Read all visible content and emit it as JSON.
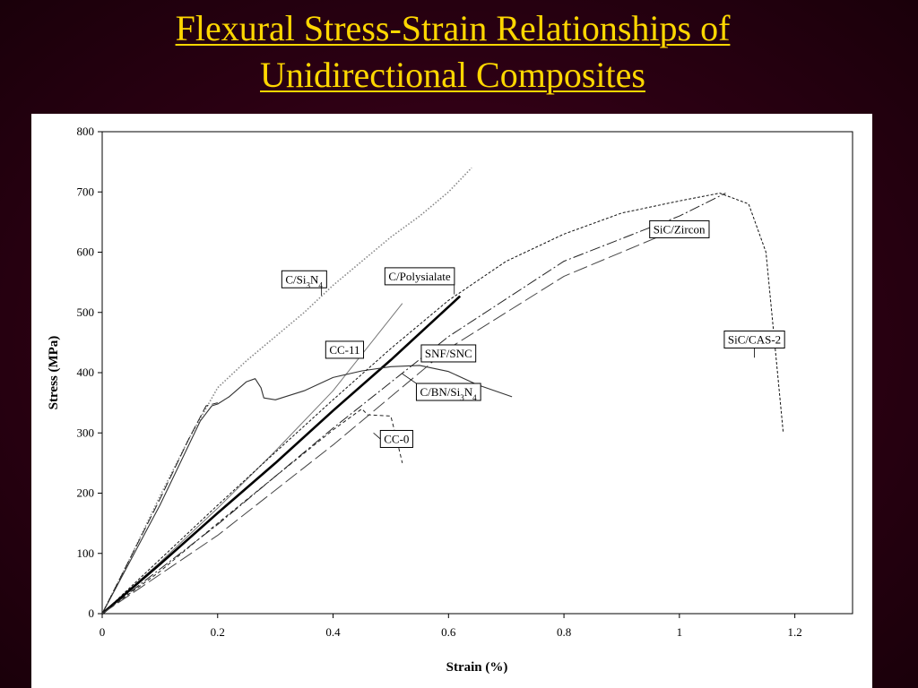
{
  "slide": {
    "title_line1": "Flexural Stress-Strain Relationships of",
    "title_line2": "Unidirectional Composites",
    "title_color": "#ffd700",
    "background_color": "#2a0012"
  },
  "chart_data": {
    "type": "line",
    "title": "",
    "xlabel": "Strain (%)",
    "ylabel": "Stress (MPa)",
    "xlim": [
      0,
      1.3
    ],
    "ylim": [
      0,
      800
    ],
    "xticks": [
      0,
      0.2,
      0.4,
      0.6,
      0.8,
      1,
      1.2
    ],
    "xtick_labels": [
      "0",
      "0.2",
      "0.4",
      "0.6",
      "0.8",
      "1",
      "1.2"
    ],
    "yticks": [
      0,
      100,
      200,
      300,
      400,
      500,
      600,
      700,
      800
    ],
    "ytick_labels": [
      "0",
      "100",
      "200",
      "300",
      "400",
      "500",
      "600",
      "700",
      "800"
    ],
    "grid": false,
    "legend": "none",
    "series": [
      {
        "name": "C/Si3N4",
        "style": "dotted-gray",
        "x": [
          0,
          0.05,
          0.1,
          0.15,
          0.2,
          0.25,
          0.3,
          0.35,
          0.4,
          0.45,
          0.5,
          0.55,
          0.6,
          0.64
        ],
        "y": [
          0,
          95,
          195,
          290,
          375,
          420,
          460,
          500,
          545,
          585,
          625,
          660,
          700,
          740
        ]
      },
      {
        "name": "CC-11",
        "style": "solid-thin-gray",
        "x": [
          0,
          0.1,
          0.2,
          0.3,
          0.4,
          0.52
        ],
        "y": [
          0,
          85,
          175,
          270,
          370,
          515
        ]
      },
      {
        "name": "C/Polysialate",
        "style": "solid-thick",
        "x": [
          0,
          0.1,
          0.2,
          0.3,
          0.4,
          0.5,
          0.62
        ],
        "y": [
          0,
          82,
          167,
          250,
          337,
          421,
          527
        ]
      },
      {
        "name": "C/BN/Si3N4",
        "style": "solid-thin",
        "x": [
          0,
          0.1,
          0.17,
          0.19,
          0.2,
          0.22,
          0.25,
          0.265,
          0.275,
          0.28,
          0.3,
          0.35,
          0.4,
          0.45,
          0.5,
          0.55,
          0.6,
          0.65,
          0.71
        ],
        "y": [
          0,
          180,
          320,
          345,
          348,
          360,
          385,
          390,
          375,
          358,
          355,
          370,
          392,
          403,
          410,
          412,
          402,
          380,
          360
        ]
      },
      {
        "name": "SNF/SNC",
        "style": "long-dash",
        "x": [
          0,
          0.05,
          0.1,
          0.15,
          0.18,
          0.2
        ],
        "y": [
          0,
          95,
          190,
          290,
          345,
          350
        ]
      },
      {
        "name": "CC-0",
        "style": "short-dash",
        "x": [
          0,
          0.1,
          0.2,
          0.3,
          0.4,
          0.45,
          0.46,
          0.5,
          0.51,
          0.52
        ],
        "y": [
          0,
          70,
          150,
          228,
          305,
          340,
          330,
          328,
          290,
          250
        ]
      },
      {
        "name": "SiC/Zircon",
        "style": "dash-dot",
        "x": [
          0,
          0.2,
          0.4,
          0.6,
          0.8,
          1.0,
          1.08
        ],
        "y": [
          0,
          148,
          308,
          460,
          585,
          660,
          698
        ]
      },
      {
        "name": "SiC/CAS-2",
        "style": "fine-dash",
        "x": [
          0,
          0.1,
          0.2,
          0.3,
          0.4,
          0.5,
          0.6,
          0.7,
          0.8,
          0.9,
          1.0,
          1.07,
          1.12,
          1.15,
          1.17,
          1.18
        ],
        "y": [
          0,
          90,
          180,
          268,
          355,
          440,
          520,
          585,
          630,
          665,
          685,
          698,
          680,
          600,
          400,
          300
        ]
      },
      {
        "name": "",
        "style": "dash-wide",
        "x": [
          0,
          0.2,
          0.4,
          0.6,
          0.8,
          1.0
        ],
        "y": [
          0,
          130,
          280,
          440,
          560,
          640
        ]
      }
    ],
    "annotations": [
      {
        "text": "C/Si3N4",
        "base": "C/Si",
        "sub1": "3",
        "mid": "N",
        "sub2": "4"
      },
      {
        "text": "C/Polysialate"
      },
      {
        "text": "CC-11"
      },
      {
        "text": "SNF/SNC"
      },
      {
        "text": "C/BN/Si3N4",
        "base": "C/BN/Si",
        "sub1": "3",
        "mid": "N",
        "sub2": "4"
      },
      {
        "text": "CC-0"
      },
      {
        "text": "SiC/Zircon"
      },
      {
        "text": "SiC/CAS-2"
      }
    ]
  }
}
